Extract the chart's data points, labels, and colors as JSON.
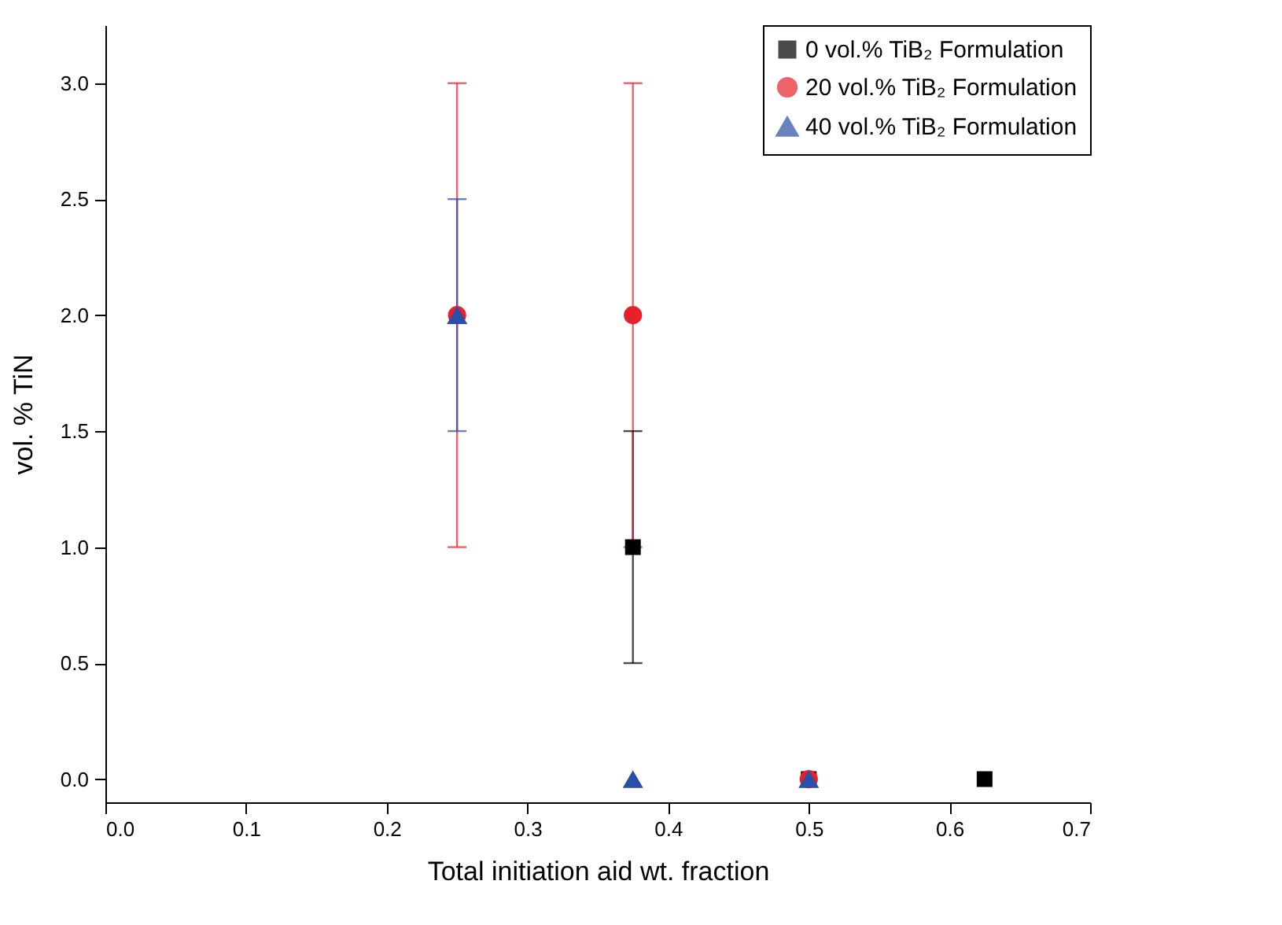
{
  "chart_data": {
    "type": "scatter",
    "xlabel": "Total initiation aid wt. fraction",
    "ylabel": "vol. % TiN",
    "xlim": [
      0,
      0.7
    ],
    "xticks": [
      {
        "value": 0,
        "label": "0.0"
      },
      0.1,
      0.2,
      0.3,
      0.4,
      0.5,
      0.6,
      0.7
    ],
    "ylim": [
      -0.1,
      3.25
    ],
    "yticks": [
      {
        "value": 0,
        "label": "0.0"
      },
      0.5,
      {
        "value": 1,
        "label": "1.0"
      },
      1.5,
      {
        "value": 2,
        "label": "2.0"
      },
      2.5,
      {
        "value": 3,
        "label": "3.0"
      }
    ],
    "grid": false,
    "legend": "top right",
    "series": [
      {
        "name": "0 vol.% TiB₂ Formulation",
        "color": "#000000",
        "marker": "square",
        "x": [
          0.375,
          0.5,
          0.625
        ],
        "values": [
          1,
          0,
          0
        ],
        "errors": [
          0.5,
          null,
          null
        ]
      },
      {
        "name": "20 vol.% TiB₂ Formulation",
        "color": "#e8202a",
        "marker": "circle",
        "x": [
          0.25,
          0.375,
          0.5
        ],
        "values": [
          2,
          2,
          0
        ],
        "errors": [
          1,
          1,
          null
        ]
      },
      {
        "name": "40 vol.% TiB₂ Formulation",
        "color": "#2a4fa8",
        "marker": "triangle",
        "x": [
          0.25,
          0.375,
          0.5
        ],
        "values": [
          2,
          0,
          0
        ],
        "errors": [
          0.5,
          null,
          null
        ]
      }
    ]
  }
}
